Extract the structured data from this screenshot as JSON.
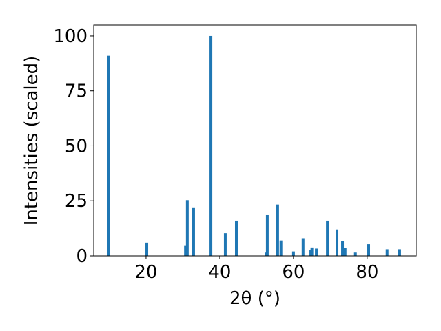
{
  "chart_data": {
    "type": "bar",
    "xlabel": "2θ (°)",
    "ylabel": "Intensities (scaled)",
    "x": [
      9.9,
      20.2,
      30.7,
      31.2,
      32.9,
      37.6,
      41.5,
      44.5,
      52.7,
      52.9,
      55.7,
      56.6,
      60.0,
      62.6,
      64.7,
      65.0,
      66.2,
      69.2,
      71.8,
      73.3,
      74.0,
      76.8,
      80.4,
      85.4,
      88.8
    ],
    "values": [
      91,
      6,
      4.5,
      25.3,
      22,
      100,
      10.3,
      16,
      1.5,
      18.5,
      23.3,
      7,
      2,
      8,
      2.5,
      3.8,
      3.3,
      16,
      12,
      6.7,
      3.5,
      1.5,
      5.3,
      3,
      3
    ],
    "color": "#1f77b4",
    "xlim": [
      5.8,
      93.3
    ],
    "xticks": [
      20,
      40,
      60,
      80
    ],
    "ylim": [
      0,
      105
    ],
    "yticks": [
      0,
      25,
      50,
      75,
      100
    ]
  }
}
